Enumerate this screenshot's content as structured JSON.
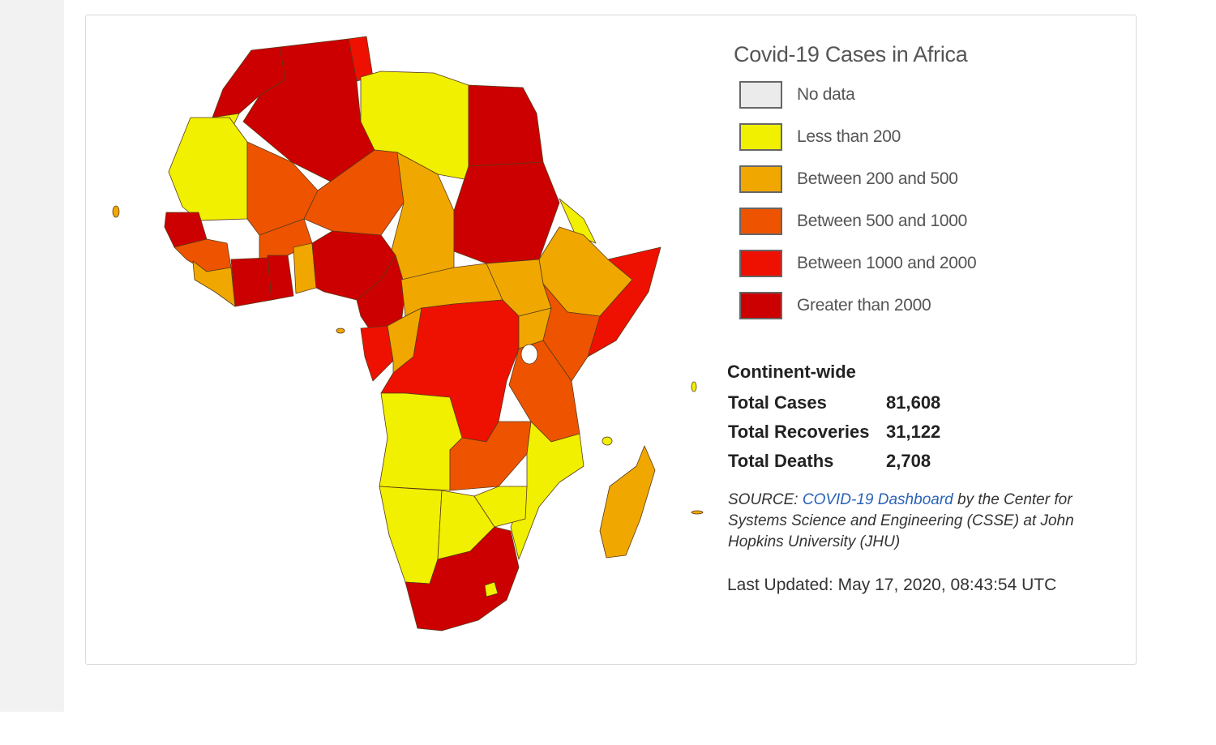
{
  "legend": {
    "title": "Covid-19 Cases in Africa",
    "items": [
      {
        "label": "No data",
        "color": "#ebebeb"
      },
      {
        "label": "Less than 200",
        "color": "#f0f000"
      },
      {
        "label": "Between 200 and 500",
        "color": "#f0a800"
      },
      {
        "label": "Between 500 and 1000",
        "color": "#ee5400"
      },
      {
        "label": "Between 1000 and 2000",
        "color": "#ee1000"
      },
      {
        "label": "Greater than 2000",
        "color": "#cc0000"
      }
    ]
  },
  "stats": {
    "heading": "Continent-wide",
    "rows": [
      {
        "label": "Total Cases",
        "value": "81,608"
      },
      {
        "label": "Total Recoveries",
        "value": "31,122"
      },
      {
        "label": "Total Deaths",
        "value": "2,708"
      }
    ]
  },
  "source": {
    "prefix": "SOURCE: ",
    "link_text": "COVID-19 Dashboard",
    "suffix": " by the Center for Systems Science and Engineering (CSSE) at John Hopkins University (JHU)"
  },
  "updated": "Last Updated: May 17, 2020, 08:43:54 UTC"
}
